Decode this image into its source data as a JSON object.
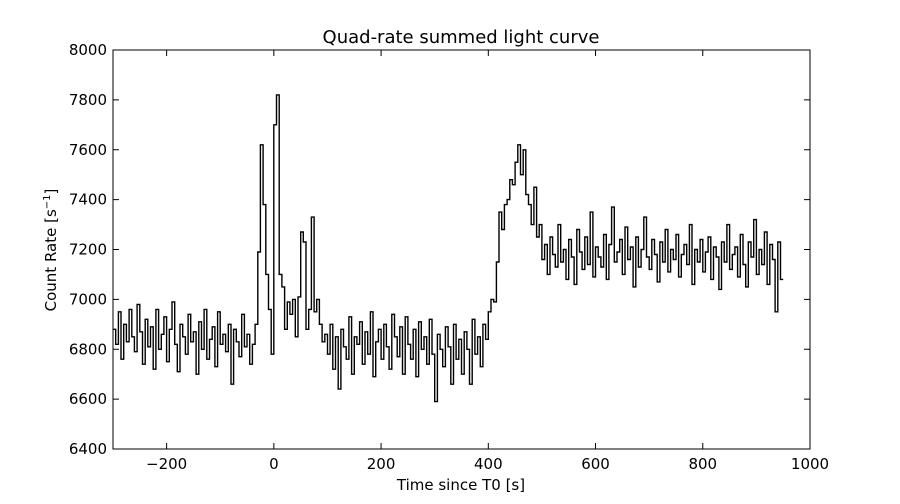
{
  "chart_data": {
    "type": "line",
    "title": "Quad-rate summed light curve",
    "xlabel": "Time since T0 [s]",
    "ylabel": "Count Rate [s",
    "ylabel_sup": "−1",
    "ylabel_end": "]",
    "xlim": [
      -300,
      1000
    ],
    "ylim": [
      6400,
      8000
    ],
    "xticks": [
      -200,
      0,
      200,
      400,
      600,
      800,
      1000
    ],
    "xtick_labels": [
      "−200",
      "0",
      "200",
      "400",
      "600",
      "800",
      "1000"
    ],
    "yticks": [
      6400,
      6600,
      6800,
      7000,
      7200,
      7400,
      7600,
      7800,
      8000
    ],
    "ytick_labels": [
      "6400",
      "6600",
      "6800",
      "7000",
      "7200",
      "7400",
      "7600",
      "7800",
      "8000"
    ],
    "grid": false,
    "drawstyle": "steps",
    "x_start": -300,
    "bin_size": 5,
    "series": [
      {
        "name": "summed light curve",
        "color": "#000000",
        "values": [
          6880,
          6820,
          6950,
          6760,
          6900,
          6830,
          6960,
          6850,
          6790,
          6980,
          6870,
          6740,
          6920,
          6810,
          6890,
          6720,
          6960,
          6800,
          6860,
          6930,
          6750,
          6880,
          6990,
          6820,
          6710,
          6900,
          6850,
          6780,
          6940,
          6830,
          6870,
          6700,
          6910,
          6800,
          6960,
          6760,
          6840,
          6890,
          6730,
          6950,
          6820,
          6860,
          6790,
          6900,
          6660,
          6880,
          6830,
          6770,
          6940,
          6810,
          6860,
          6740,
          6820,
          6900,
          7190,
          7620,
          7380,
          7100,
          6960,
          6780,
          7700,
          7820,
          7100,
          7050,
          6880,
          6990,
          6940,
          7000,
          6850,
          7010,
          7270,
          7230,
          6880,
          6960,
          7330,
          6950,
          7000,
          6900,
          6830,
          6860,
          6780,
          6900,
          6720,
          6850,
          6640,
          6880,
          6810,
          6760,
          6930,
          6700,
          6850,
          6820,
          6910,
          6740,
          6870,
          6780,
          6950,
          6690,
          6830,
          6880,
          6760,
          6900,
          6810,
          6720,
          6940,
          6850,
          6770,
          6890,
          6700,
          6930,
          6820,
          6760,
          6880,
          6690,
          6910,
          6800,
          6850,
          6740,
          6920,
          6780,
          6590,
          6860,
          6800,
          6730,
          6890,
          6810,
          6660,
          6900,
          6760,
          6840,
          6700,
          6870,
          6800,
          6660,
          6920,
          6780,
          6850,
          6730,
          6900,
          6840,
          6950,
          7000,
          6990,
          7150,
          7350,
          7280,
          7380,
          7400,
          7480,
          7460,
          7550,
          7620,
          7500,
          7600,
          7420,
          7380,
          7300,
          7450,
          7250,
          7300,
          7160,
          7220,
          7100,
          7250,
          7180,
          7130,
          7300,
          7150,
          7200,
          7080,
          7240,
          7170,
          7060,
          7280,
          7190,
          7120,
          7250,
          7140,
          7350,
          7090,
          7210,
          7170,
          7130,
          7260,
          7080,
          7220,
          7370,
          7150,
          7190,
          7240,
          7100,
          7290,
          7160,
          7210,
          7050,
          7250,
          7130,
          7200,
          7330,
          7170,
          7120,
          7240,
          7180,
          7070,
          7230,
          7150,
          7280,
          7110,
          7200,
          7160,
          7260,
          7090,
          7180,
          7220,
          7140,
          7300,
          7060,
          7200,
          7150,
          7240,
          7110,
          7190,
          7250,
          7080,
          7210,
          7170,
          7040,
          7230,
          7150,
          7300,
          7120,
          7180,
          7210,
          7090,
          7260,
          7140,
          7050,
          7230,
          7170,
          7320,
          7100,
          7200,
          7140,
          7270,
          7060,
          7220,
          7160,
          6950,
          7230,
          7080
        ]
      }
    ]
  }
}
